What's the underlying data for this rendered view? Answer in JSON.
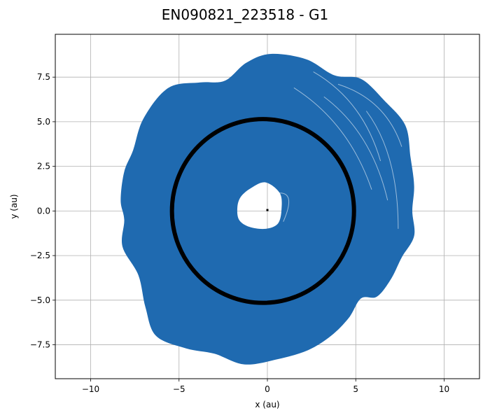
{
  "chart_data": {
    "type": "line",
    "title": "EN090821_223518 - G1",
    "xlabel": "x (au)",
    "ylabel": "y (au)",
    "xlim": [
      -12.0,
      12.0
    ],
    "ylim": [
      -9.4,
      9.9
    ],
    "x_ticks": [
      -10,
      -5,
      0,
      5,
      10
    ],
    "x_tick_labels": [
      "−10",
      "−5",
      "0",
      "5",
      "10"
    ],
    "y_ticks": [
      -7.5,
      -5.0,
      -2.5,
      0.0,
      2.5,
      5.0,
      7.5
    ],
    "y_tick_labels": [
      "−7.5",
      "−5.0",
      "−2.5",
      "0.0",
      "2.5",
      "5.0",
      "7.5"
    ],
    "grid": true,
    "series": [
      {
        "color": "#1f6ab0",
        "description_points": "outer envelope of overlapping orbit tracks",
        "outer_boundary": [
          [
            0.2,
            8.8
          ],
          [
            2.2,
            8.5
          ],
          [
            3.8,
            7.6
          ],
          [
            5.3,
            7.4
          ],
          [
            6.6,
            6.2
          ],
          [
            7.8,
            4.8
          ],
          [
            8.1,
            3.0
          ],
          [
            8.3,
            1.4
          ],
          [
            8.2,
            0.0
          ],
          [
            8.3,
            -1.4
          ],
          [
            7.6,
            -2.6
          ],
          [
            7.0,
            -3.8
          ],
          [
            6.2,
            -4.8
          ],
          [
            5.3,
            -4.9
          ],
          [
            4.6,
            -6.0
          ],
          [
            3.6,
            -7.0
          ],
          [
            2.3,
            -7.8
          ],
          [
            0.6,
            -8.3
          ],
          [
            -1.3,
            -8.6
          ],
          [
            -3.0,
            -8.0
          ],
          [
            -4.6,
            -7.7
          ],
          [
            -6.3,
            -7.0
          ],
          [
            -6.9,
            -5.4
          ],
          [
            -7.3,
            -3.6
          ],
          [
            -8.2,
            -2.0
          ],
          [
            -8.1,
            -0.5
          ],
          [
            -8.3,
            0.6
          ],
          [
            -8.1,
            2.2
          ],
          [
            -7.6,
            3.4
          ],
          [
            -7.0,
            5.2
          ],
          [
            -5.6,
            6.9
          ],
          [
            -3.8,
            7.2
          ],
          [
            -2.4,
            7.3
          ],
          [
            -1.2,
            8.3
          ]
        ],
        "inner_hole_boundary": [
          [
            -1.5,
            0.8
          ],
          [
            -0.9,
            1.3
          ],
          [
            -0.1,
            1.6
          ],
          [
            0.7,
            1.0
          ],
          [
            0.8,
            0.1
          ],
          [
            0.6,
            -0.7
          ],
          [
            -0.1,
            -1.0
          ],
          [
            -1.0,
            -0.9
          ],
          [
            -1.6,
            -0.5
          ],
          [
            -1.7,
            0.2
          ]
        ]
      },
      {
        "color": "#000000",
        "shape": "circle",
        "center": [
          -0.25,
          0.0
        ],
        "radius": 5.15
      }
    ],
    "marker_point": [
      0.0,
      0.05
    ]
  }
}
